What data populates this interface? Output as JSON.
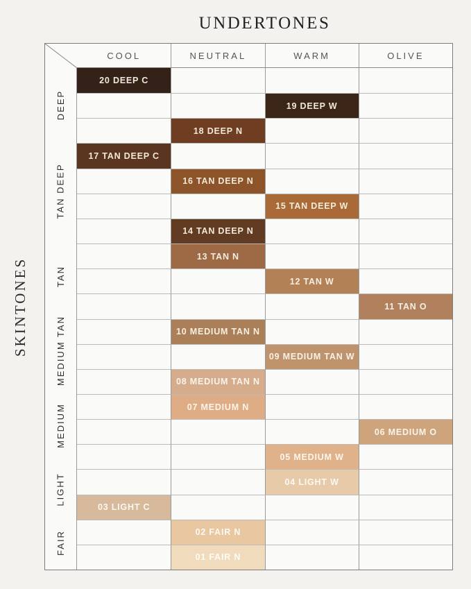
{
  "chart_data": {
    "type": "table",
    "title": "UNDERTONES",
    "row_axis_title": "SKINTONES",
    "columns": [
      "COOL",
      "NEUTRAL",
      "WARM",
      "OLIVE"
    ],
    "row_groups": [
      {
        "label": "DEEP",
        "rows": 3
      },
      {
        "label": "TAN DEEP",
        "rows": 4
      },
      {
        "label": "TAN",
        "rows": 3
      },
      {
        "label": "MEDIUM TAN",
        "rows": 3
      },
      {
        "label": "MEDIUM",
        "rows": 3
      },
      {
        "label": "LIGHT",
        "rows": 2
      },
      {
        "label": "FAIR",
        "rows": 2
      }
    ],
    "shades": [
      {
        "row": 0,
        "label": "20 DEEP C",
        "column": "COOL",
        "color": "#342219",
        "text_color": "#f3e9da"
      },
      {
        "row": 1,
        "label": "19 DEEP W",
        "column": "WARM",
        "color": "#3a2517",
        "text_color": "#f3e9da"
      },
      {
        "row": 2,
        "label": "18 DEEP N",
        "column": "NEUTRAL",
        "color": "#6f3d22",
        "text_color": "#f3e9da"
      },
      {
        "row": 3,
        "label": "17 TAN DEEP C",
        "column": "COOL",
        "color": "#5a3620",
        "text_color": "#f3e9da"
      },
      {
        "row": 4,
        "label": "16 TAN DEEP N",
        "column": "NEUTRAL",
        "color": "#8e5429",
        "text_color": "#f3e9da"
      },
      {
        "row": 5,
        "label": "15 TAN DEEP W",
        "column": "WARM",
        "color": "#aa6a38",
        "text_color": "#f5edd9"
      },
      {
        "row": 6,
        "label": "14 TAN DEEP N",
        "column": "NEUTRAL",
        "color": "#613c23",
        "text_color": "#f3e9da"
      },
      {
        "row": 7,
        "label": "13 TAN N",
        "column": "NEUTRAL",
        "color": "#9d6a45",
        "text_color": "#f5edde"
      },
      {
        "row": 8,
        "label": "12 TAN W",
        "column": "WARM",
        "color": "#b28156",
        "text_color": "#f7efe2"
      },
      {
        "row": 9,
        "label": "11 TAN O",
        "column": "OLIVE",
        "color": "#b0815c",
        "text_color": "#f7efe2"
      },
      {
        "row": 10,
        "label": "10 MEDIUM TAN N",
        "column": "NEUTRAL",
        "color": "#ab8059",
        "text_color": "#f7efe2"
      },
      {
        "row": 11,
        "label": "09 MEDIUM TAN W",
        "column": "WARM",
        "color": "#bf946c",
        "text_color": "#f9f2e6"
      },
      {
        "row": 12,
        "label": "08 MEDIUM TAN N",
        "column": "NEUTRAL",
        "color": "#d5ad8c",
        "text_color": "#faf4ea"
      },
      {
        "row": 13,
        "label": "07 MEDIUM N",
        "column": "NEUTRAL",
        "color": "#dfad85",
        "text_color": "#faf4ea"
      },
      {
        "row": 14,
        "label": "06 MEDIUM O",
        "column": "OLIVE",
        "color": "#cda47c",
        "text_color": "#faf4ea"
      },
      {
        "row": 15,
        "label": "05 MEDIUM W",
        "column": "WARM",
        "color": "#dfb28a",
        "text_color": "#fbf6ee"
      },
      {
        "row": 16,
        "label": "04 LIGHT W",
        "column": "WARM",
        "color": "#e7caa7",
        "text_color": "#fcf9f2"
      },
      {
        "row": 17,
        "label": "03 LIGHT C",
        "column": "COOL",
        "color": "#d7ba9b",
        "text_color": "#fbf7f0"
      },
      {
        "row": 18,
        "label": "02 FAIR N",
        "column": "NEUTRAL",
        "color": "#e9c7a1",
        "text_color": "#fcf9f2"
      },
      {
        "row": 19,
        "label": "01 FAIR N",
        "column": "NEUTRAL",
        "color": "#f0dcbd",
        "text_color": "#fdfbf6"
      }
    ]
  },
  "colors": {
    "page_background": "#f3f2ef",
    "cell_background": "#fafaf8",
    "outer_border": "#7d7b78",
    "header_separator": "#8a8886",
    "vertical_gridline": "#9b9997",
    "horizontal_gridline": "#bcbab7",
    "header_text": "#55544f",
    "title_text": "#222222",
    "group_label_text": "#2e2d2b"
  }
}
